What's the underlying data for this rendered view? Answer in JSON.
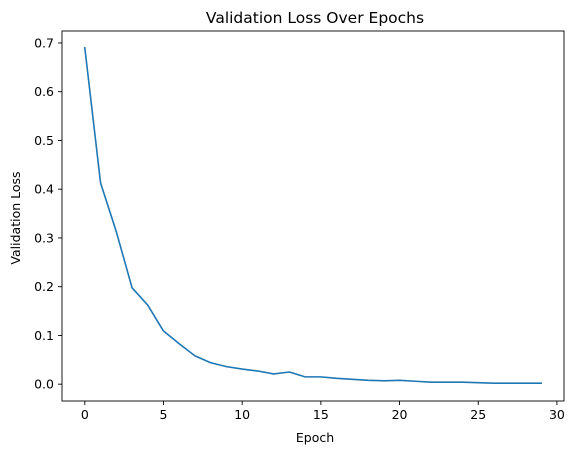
{
  "chart_data": {
    "type": "line",
    "title": "Validation Loss Over Epochs",
    "xlabel": "Epoch",
    "ylabel": "Validation Loss",
    "xlim": [
      -1.45,
      30.45
    ],
    "ylim": [
      -0.0345,
      0.7245
    ],
    "xticks": [
      0,
      5,
      10,
      15,
      20,
      25,
      30
    ],
    "yticks": [
      0.0,
      0.1,
      0.2,
      0.3,
      0.4,
      0.5,
      0.6,
      0.7
    ],
    "xtick_labels": [
      "0",
      "5",
      "10",
      "15",
      "20",
      "25",
      "30"
    ],
    "ytick_labels": [
      "0.0",
      "0.1",
      "0.2",
      "0.3",
      "0.4",
      "0.5",
      "0.6",
      "0.7"
    ],
    "grid": false,
    "series": [
      {
        "color": "#1f77b4",
        "x": [
          0,
          1,
          2,
          3,
          4,
          5,
          6,
          7,
          8,
          9,
          10,
          11,
          12,
          13,
          14,
          15,
          16,
          17,
          18,
          19,
          20,
          21,
          22,
          23,
          24,
          25,
          26,
          27,
          28,
          29
        ],
        "values": [
          0.69,
          0.413,
          0.313,
          0.198,
          0.162,
          0.109,
          0.083,
          0.058,
          0.044,
          0.036,
          0.031,
          0.027,
          0.021,
          0.025,
          0.015,
          0.015,
          0.012,
          0.01,
          0.008,
          0.007,
          0.008,
          0.006,
          0.004,
          0.004,
          0.004,
          0.003,
          0.002,
          0.002,
          0.002,
          0.002
        ]
      }
    ]
  }
}
